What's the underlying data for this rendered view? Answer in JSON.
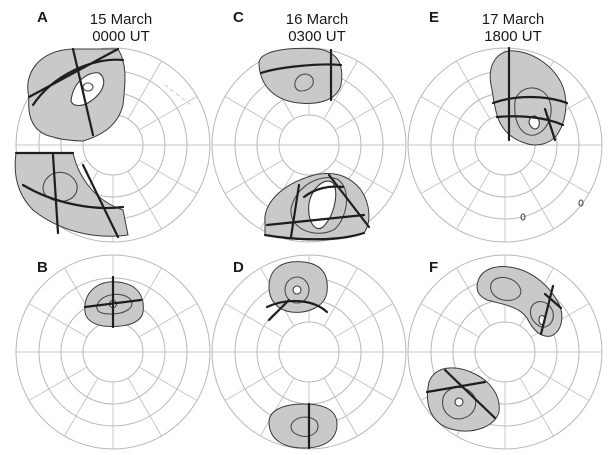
{
  "columns": [
    {
      "panel_top": "A",
      "panel_bottom": "B",
      "title_line1": "15 March",
      "title_line2": "0000 UT"
    },
    {
      "panel_top": "C",
      "panel_bottom": "D",
      "title_line1": "16 March",
      "title_line2": "0300 UT"
    },
    {
      "panel_top": "E",
      "panel_bottom": "F",
      "title_line1": "17 March",
      "title_line2": "1800 UT"
    }
  ],
  "colors": {
    "grid": "#b8b8b8",
    "shading": "#c9c9c9",
    "boundary": "#1e1e1e"
  }
}
